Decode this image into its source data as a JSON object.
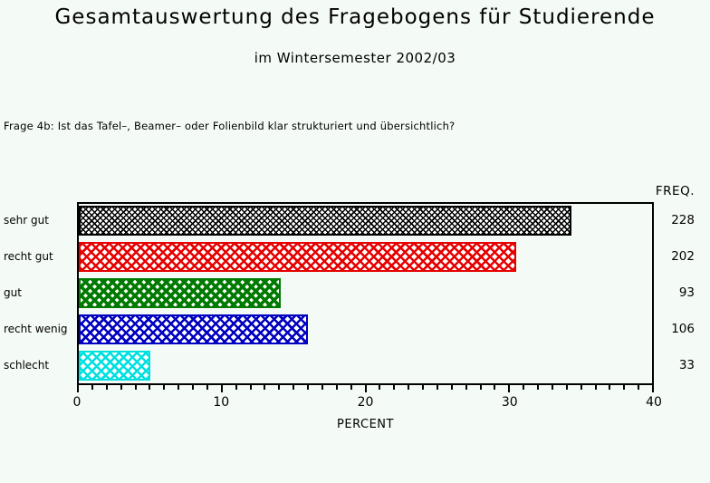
{
  "page": {
    "background": "#F4FAF5"
  },
  "header": {
    "title": "Gesamtauswertung des Fragebogens für Studierende",
    "subtitle": "im Wintersemester 2002/03",
    "question": "Frage 4b: Ist das Tafel–, Beamer– oder Folienbild klar strukturiert und übersichtlich?"
  },
  "chart_data": {
    "type": "bar",
    "orientation": "horizontal",
    "categories": [
      "sehr gut",
      "recht gut",
      "gut",
      "recht wenig",
      "schlecht"
    ],
    "series": [
      {
        "name": "PERCENT",
        "values": [
          34.4,
          30.5,
          14.1,
          16.0,
          5.0
        ]
      },
      {
        "name": "FREQ.",
        "values": [
          228,
          202,
          93,
          106,
          33
        ]
      }
    ],
    "freq_header": "FREQ.",
    "xlabel": "PERCENT",
    "xlim": [
      0,
      40
    ],
    "x_major_ticks": [
      0,
      10,
      20,
      30,
      40
    ],
    "x_minor_tick_step": 1,
    "legend": "none",
    "frame": true,
    "bar_colors": [
      "#000000",
      "#E60000",
      "#007A00",
      "#0000C0",
      "#00E0E0"
    ],
    "bar_patterns": [
      "fine-crosshatch",
      "crosshatch",
      "dense-crosshatch",
      "crosshatch",
      "crosshatch"
    ]
  }
}
